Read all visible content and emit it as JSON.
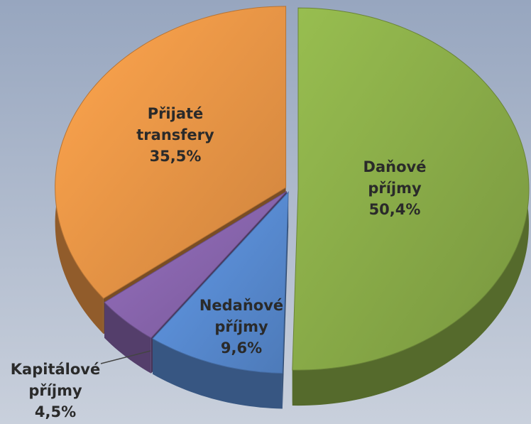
{
  "chart_data": {
    "type": "pie",
    "categories": [
      "Daňové příjmy",
      "Nedaňové příjmy",
      "Kapitálové příjmy",
      "Přijaté transfery"
    ],
    "values": [
      50.4,
      9.6,
      4.5,
      35.5
    ],
    "value_labels": [
      "50,4%",
      "9,6%",
      "4,5%",
      "35,5%"
    ],
    "colors": [
      "#8db04a",
      "#5b8fd8",
      "#8c68b2",
      "#f29a48"
    ]
  }
}
